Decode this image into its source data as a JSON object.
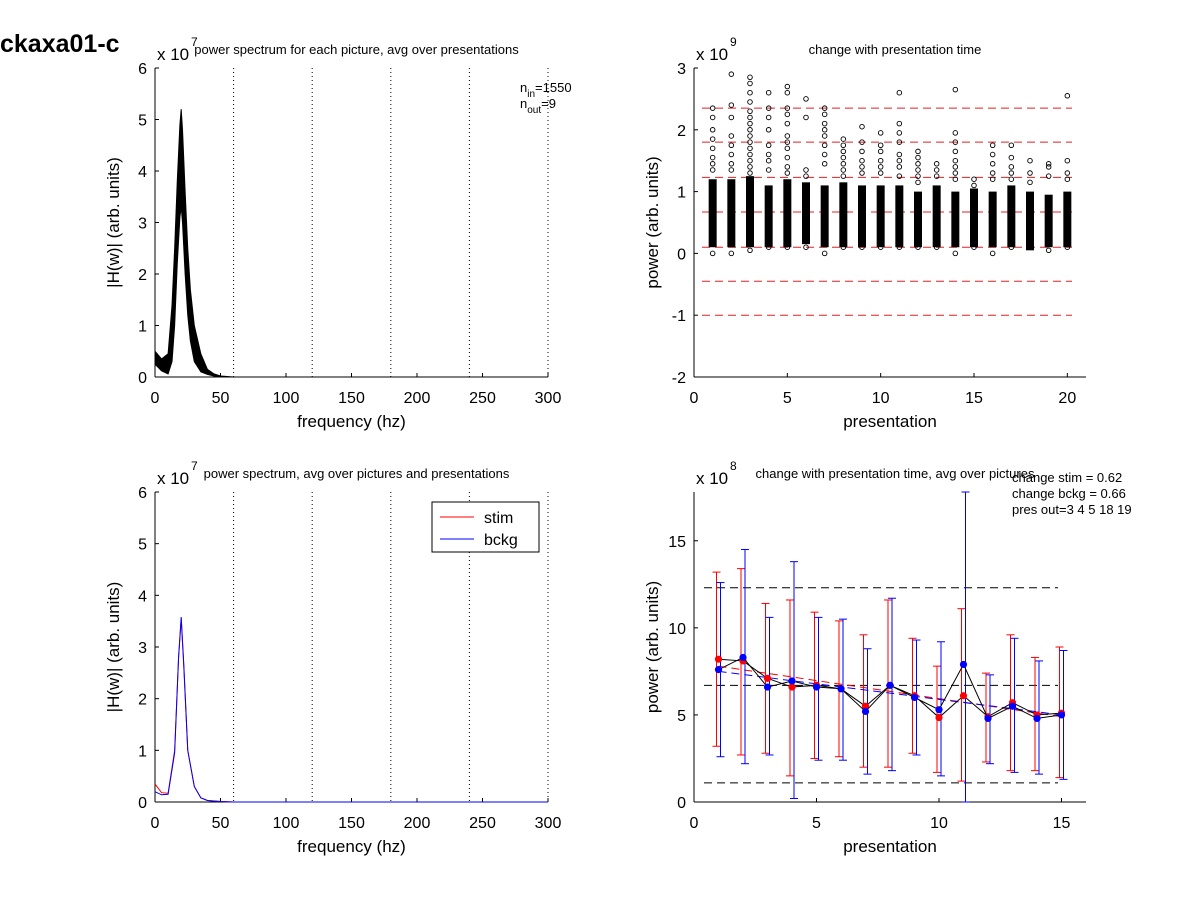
{
  "figure_label": "ckaxa01-c",
  "chart_data": [
    {
      "id": "p1",
      "type": "line",
      "title": "power spectrum for each picture, avg over presentations",
      "xlabel": "frequency (hz)",
      "ylabel": "|H(w)| (arb. units)",
      "exponent_label": "x 10",
      "exponent": "7",
      "xlim": [
        0,
        300
      ],
      "ylim": [
        0,
        6
      ],
      "xticks": [
        0,
        50,
        100,
        150,
        200,
        250,
        300
      ],
      "yticks": [
        0,
        1,
        2,
        3,
        4,
        5,
        6
      ],
      "vlines": [
        60,
        120,
        180,
        240,
        300
      ],
      "annotations": [
        {
          "base": "n",
          "sub": "in",
          "text": "=1550"
        },
        {
          "base": "n",
          "sub": "out",
          "text": "=9"
        }
      ],
      "band": {
        "x": [
          0,
          5,
          10,
          13,
          15,
          17,
          19,
          20,
          21,
          22,
          23,
          25,
          27,
          30,
          35,
          40,
          45,
          50,
          55,
          60,
          300
        ],
        "lower": [
          0.25,
          0.12,
          0.06,
          0.3,
          1.0,
          2.2,
          3.1,
          3.3,
          3.0,
          2.5,
          2.0,
          1.2,
          0.7,
          0.3,
          0.1,
          0.05,
          0.02,
          0.01,
          0.0,
          0.0,
          0.0
        ],
        "upper": [
          0.5,
          0.35,
          0.45,
          1.4,
          2.5,
          3.8,
          4.9,
          5.2,
          4.8,
          4.2,
          3.6,
          2.5,
          1.7,
          1.0,
          0.45,
          0.15,
          0.06,
          0.02,
          0.01,
          0.0,
          0.0
        ]
      }
    },
    {
      "id": "p2",
      "type": "scatter",
      "title": "change with presentation time",
      "xlabel": "presentation",
      "ylabel": "power (arb. units)",
      "exponent_label": "x 10",
      "exponent": "9",
      "xlim": [
        0,
        21
      ],
      "ylim": [
        -2,
        3
      ],
      "xticks": [
        0,
        5,
        10,
        15,
        20
      ],
      "yticks": [
        -2,
        -1,
        0,
        1,
        2,
        3
      ],
      "hlines": [
        2.35,
        1.8,
        1.23,
        0.67,
        0.1,
        -0.45,
        -1.0
      ],
      "dense_bands": [
        {
          "x": 1,
          "min": 0.1,
          "max": 1.2
        },
        {
          "x": 2,
          "min": 0.1,
          "max": 1.2
        },
        {
          "x": 3,
          "min": 0.1,
          "max": 1.25
        },
        {
          "x": 4,
          "min": 0.1,
          "max": 1.1
        },
        {
          "x": 5,
          "min": 0.1,
          "max": 1.2
        },
        {
          "x": 6,
          "min": 0.15,
          "max": 1.15
        },
        {
          "x": 7,
          "min": 0.1,
          "max": 1.1
        },
        {
          "x": 8,
          "min": 0.1,
          "max": 1.15
        },
        {
          "x": 9,
          "min": 0.1,
          "max": 1.1
        },
        {
          "x": 10,
          "min": 0.1,
          "max": 1.1
        },
        {
          "x": 11,
          "min": 0.1,
          "max": 1.1
        },
        {
          "x": 12,
          "min": 0.1,
          "max": 1.0
        },
        {
          "x": 13,
          "min": 0.1,
          "max": 1.1
        },
        {
          "x": 14,
          "min": 0.1,
          "max": 1.0
        },
        {
          "x": 15,
          "min": 0.1,
          "max": 1.05
        },
        {
          "x": 16,
          "min": 0.1,
          "max": 1.0
        },
        {
          "x": 17,
          "min": 0.1,
          "max": 1.1
        },
        {
          "x": 18,
          "min": 0.05,
          "max": 1.0
        },
        {
          "x": 19,
          "min": 0.1,
          "max": 0.95
        },
        {
          "x": 20,
          "min": 0.1,
          "max": 1.0
        }
      ],
      "points": [
        [
          1,
          2.35
        ],
        [
          1,
          2.2
        ],
        [
          1,
          2.0
        ],
        [
          1,
          1.85
        ],
        [
          1,
          1.7
        ],
        [
          1,
          1.55
        ],
        [
          1,
          1.45
        ],
        [
          1,
          1.35
        ],
        [
          1,
          0.0
        ],
        [
          2,
          2.9
        ],
        [
          2,
          2.4
        ],
        [
          2,
          2.2
        ],
        [
          2,
          1.9
        ],
        [
          2,
          1.75
        ],
        [
          2,
          1.6
        ],
        [
          2,
          1.45
        ],
        [
          2,
          1.35
        ],
        [
          2,
          0.0
        ],
        [
          3,
          2.85
        ],
        [
          3,
          2.75
        ],
        [
          3,
          2.6
        ],
        [
          3,
          2.45
        ],
        [
          3,
          2.3
        ],
        [
          3,
          2.2
        ],
        [
          3,
          2.1
        ],
        [
          3,
          2.0
        ],
        [
          3,
          1.9
        ],
        [
          3,
          1.8
        ],
        [
          3,
          1.7
        ],
        [
          3,
          1.6
        ],
        [
          3,
          1.5
        ],
        [
          3,
          1.4
        ],
        [
          3,
          1.3
        ],
        [
          3,
          0.05
        ],
        [
          4,
          2.6
        ],
        [
          4,
          2.35
        ],
        [
          4,
          2.2
        ],
        [
          4,
          2.0
        ],
        [
          4,
          1.75
        ],
        [
          4,
          1.6
        ],
        [
          4,
          1.5
        ],
        [
          4,
          1.35
        ],
        [
          4,
          0.1
        ],
        [
          5,
          2.7
        ],
        [
          5,
          2.6
        ],
        [
          5,
          2.35
        ],
        [
          5,
          2.25
        ],
        [
          5,
          2.1
        ],
        [
          5,
          1.9
        ],
        [
          5,
          1.8
        ],
        [
          5,
          1.7
        ],
        [
          5,
          1.55
        ],
        [
          5,
          1.4
        ],
        [
          5,
          1.3
        ],
        [
          5,
          0.1
        ],
        [
          6,
          2.5
        ],
        [
          6,
          2.2
        ],
        [
          6,
          1.35
        ],
        [
          6,
          1.25
        ],
        [
          6,
          0.1
        ],
        [
          7,
          2.35
        ],
        [
          7,
          2.25
        ],
        [
          7,
          2.1
        ],
        [
          7,
          2.0
        ],
        [
          7,
          1.9
        ],
        [
          7,
          1.75
        ],
        [
          7,
          1.6
        ],
        [
          7,
          1.45
        ],
        [
          7,
          0.0
        ],
        [
          8,
          1.85
        ],
        [
          8,
          1.75
        ],
        [
          8,
          1.65
        ],
        [
          8,
          1.55
        ],
        [
          8,
          1.45
        ],
        [
          8,
          1.35
        ],
        [
          8,
          1.25
        ],
        [
          8,
          0.1
        ],
        [
          9,
          2.05
        ],
        [
          9,
          1.8
        ],
        [
          9,
          1.65
        ],
        [
          9,
          1.5
        ],
        [
          9,
          1.4
        ],
        [
          9,
          1.3
        ],
        [
          9,
          0.1
        ],
        [
          10,
          1.95
        ],
        [
          10,
          1.75
        ],
        [
          10,
          1.65
        ],
        [
          10,
          1.5
        ],
        [
          10,
          1.4
        ],
        [
          10,
          1.3
        ],
        [
          10,
          0.1
        ],
        [
          11,
          2.6
        ],
        [
          11,
          2.1
        ],
        [
          11,
          1.95
        ],
        [
          11,
          1.8
        ],
        [
          11,
          1.6
        ],
        [
          11,
          1.5
        ],
        [
          11,
          1.4
        ],
        [
          11,
          1.25
        ],
        [
          11,
          0.1
        ],
        [
          12,
          1.65
        ],
        [
          12,
          1.55
        ],
        [
          12,
          1.45
        ],
        [
          12,
          1.35
        ],
        [
          12,
          1.25
        ],
        [
          12,
          1.15
        ],
        [
          12,
          0.1
        ],
        [
          13,
          1.45
        ],
        [
          13,
          1.35
        ],
        [
          13,
          1.25
        ],
        [
          13,
          0.1
        ],
        [
          14,
          2.65
        ],
        [
          14,
          1.95
        ],
        [
          14,
          1.8
        ],
        [
          14,
          1.65
        ],
        [
          14,
          1.5
        ],
        [
          14,
          1.4
        ],
        [
          14,
          1.3
        ],
        [
          14,
          1.2
        ],
        [
          14,
          0.0
        ],
        [
          15,
          1.2
        ],
        [
          15,
          1.1
        ],
        [
          15,
          0.1
        ],
        [
          16,
          1.75
        ],
        [
          16,
          1.6
        ],
        [
          16,
          1.45
        ],
        [
          16,
          1.3
        ],
        [
          16,
          1.2
        ],
        [
          16,
          0.0
        ],
        [
          17,
          1.75
        ],
        [
          17,
          1.55
        ],
        [
          17,
          1.4
        ],
        [
          17,
          1.3
        ],
        [
          17,
          1.2
        ],
        [
          17,
          0.1
        ],
        [
          18,
          1.5
        ],
        [
          18,
          1.3
        ],
        [
          18,
          1.15
        ],
        [
          18,
          0.1
        ],
        [
          19,
          1.45
        ],
        [
          19,
          1.4
        ],
        [
          19,
          1.25
        ],
        [
          19,
          0.05
        ],
        [
          20,
          2.55
        ],
        [
          20,
          1.5
        ],
        [
          20,
          1.3
        ],
        [
          20,
          1.2
        ],
        [
          20,
          0.1
        ]
      ]
    },
    {
      "id": "p3",
      "type": "line",
      "title": "power spectrum, avg over pictures and presentations",
      "xlabel": "frequency (hz)",
      "ylabel": "|H(w)| (arb. units)",
      "exponent_label": "x 10",
      "exponent": "7",
      "xlim": [
        0,
        300
      ],
      "ylim": [
        0,
        6
      ],
      "xticks": [
        0,
        50,
        100,
        150,
        200,
        250,
        300
      ],
      "yticks": [
        0,
        1,
        2,
        3,
        4,
        5,
        6
      ],
      "vlines": [
        60,
        120,
        180,
        240,
        300
      ],
      "legend": {
        "position": "top-right"
      },
      "series": [
        {
          "name": "stim",
          "color": "#ff0000",
          "x": [
            0,
            5,
            10,
            15,
            18,
            20,
            22,
            25,
            30,
            35,
            40,
            50,
            60,
            300
          ],
          "y": [
            0.35,
            0.18,
            0.17,
            1.0,
            2.8,
            3.55,
            2.6,
            1.0,
            0.3,
            0.08,
            0.03,
            0.01,
            0.0,
            0.0
          ]
        },
        {
          "name": "bckg",
          "color": "#0000ff",
          "x": [
            0,
            5,
            10,
            15,
            18,
            20,
            22,
            25,
            30,
            35,
            40,
            50,
            60,
            300
          ],
          "y": [
            0.2,
            0.14,
            0.15,
            0.95,
            2.8,
            3.58,
            2.65,
            1.0,
            0.3,
            0.08,
            0.03,
            0.01,
            0.0,
            0.0
          ]
        }
      ]
    },
    {
      "id": "p4",
      "type": "line",
      "title": "change with presentation time, avg over pictures",
      "xlabel": "presentation",
      "ylabel": "power (arb. units)",
      "exponent_label": "x 10",
      "exponent": "8",
      "xlim": [
        0,
        16
      ],
      "ylim": [
        0,
        17.8
      ],
      "xticks": [
        0,
        5,
        10,
        15
      ],
      "yticks": [
        0,
        5,
        10,
        15
      ],
      "hlines": [
        12.3,
        6.7,
        1.1
      ],
      "annotations": [
        "change stim = 0.62",
        "change bckg = 0.66",
        "pres out=3 4 5 18 19"
      ],
      "x": [
        1,
        2,
        3,
        4,
        5,
        6,
        7,
        8,
        9,
        10,
        11,
        12,
        13,
        14,
        15
      ],
      "series": [
        {
          "name": "stim",
          "color": "#ff0000",
          "values": [
            8.2,
            8.1,
            7.1,
            6.6,
            6.7,
            6.5,
            5.5,
            6.7,
            6.1,
            4.85,
            6.1,
            4.9,
            5.7,
            5.0,
            5.1
          ],
          "err_low": [
            3.2,
            2.7,
            2.8,
            1.5,
            2.5,
            2.6,
            2.0,
            2.0,
            2.8,
            1.7,
            1.2,
            2.3,
            1.8,
            1.8,
            1.4
          ],
          "err_high": [
            13.2,
            13.4,
            11.4,
            11.6,
            10.9,
            10.4,
            9.6,
            11.6,
            9.4,
            7.8,
            11.1,
            7.4,
            9.6,
            8.3,
            8.9
          ],
          "trend": [
            7.8,
            4.9
          ]
        },
        {
          "name": "bckg",
          "color": "#0000ff",
          "values": [
            7.6,
            8.3,
            6.6,
            6.95,
            6.6,
            6.5,
            5.2,
            6.7,
            6.0,
            5.3,
            7.9,
            4.8,
            5.5,
            4.8,
            5.0
          ],
          "err_low": [
            2.6,
            2.2,
            2.7,
            0.2,
            2.4,
            2.4,
            1.6,
            1.8,
            2.7,
            1.5,
            0.0,
            2.2,
            1.7,
            1.6,
            1.3
          ],
          "err_high": [
            12.6,
            14.5,
            10.6,
            13.8,
            10.6,
            10.5,
            8.8,
            11.7,
            9.3,
            9.2,
            17.8,
            7.3,
            9.4,
            8.1,
            8.7
          ],
          "trend": [
            7.5,
            5.0
          ]
        }
      ]
    }
  ]
}
